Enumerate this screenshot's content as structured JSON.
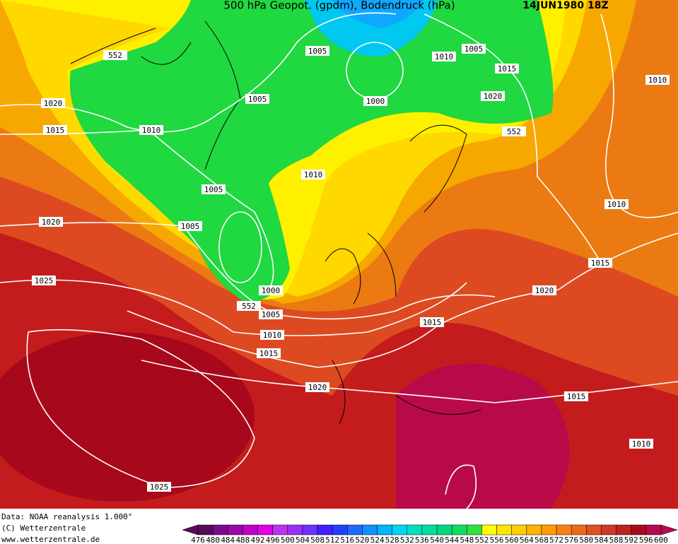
{
  "header": {
    "title": "500 hPa Geopot. (gpdm), Bodendruck (hPa)",
    "date": "14JUN1980 18Z"
  },
  "map": {
    "isobar_labels": [
      "552",
      "1005",
      "1010",
      "1005",
      "1015",
      "1010",
      "1020",
      "1005",
      "1000",
      "1020",
      "1015",
      "1010",
      "552",
      "1010",
      "1005",
      "1010",
      "1020",
      "1005",
      "1015",
      "1025",
      "1000",
      "1020",
      "552",
      "1005",
      "1015",
      "1010",
      "1015",
      "1020",
      "1015",
      "1010",
      "1025"
    ]
  },
  "footer": {
    "lines": [
      "Data: NOAA reanalysis 1.000°",
      "(C) Wetterzentrale",
      "www.wetterzentrale.de"
    ]
  },
  "colorbar": {
    "ticks": [
      476,
      480,
      484,
      488,
      492,
      496,
      500,
      504,
      508,
      512,
      516,
      520,
      524,
      528,
      532,
      536,
      540,
      544,
      548,
      552,
      556,
      560,
      564,
      568,
      572,
      576,
      580,
      584,
      588,
      592,
      596,
      600
    ],
    "colors": [
      "#5a0a5a",
      "#7c0a88",
      "#9a08a8",
      "#c000c8",
      "#e000e8",
      "#c030f0",
      "#9a30f8",
      "#7030ff",
      "#4020ff",
      "#2040ff",
      "#2068ff",
      "#1090ff",
      "#00b4ff",
      "#00d4f0",
      "#00e0c0",
      "#00dca0",
      "#00d880",
      "#10dc60",
      "#30e040",
      "#ffff00",
      "#ffe400",
      "#ffcc00",
      "#ffb400",
      "#ff9c00",
      "#f88010",
      "#ec6a18",
      "#e05020",
      "#d03828",
      "#c02020",
      "#a80a1c",
      "#b80a50"
    ]
  }
}
